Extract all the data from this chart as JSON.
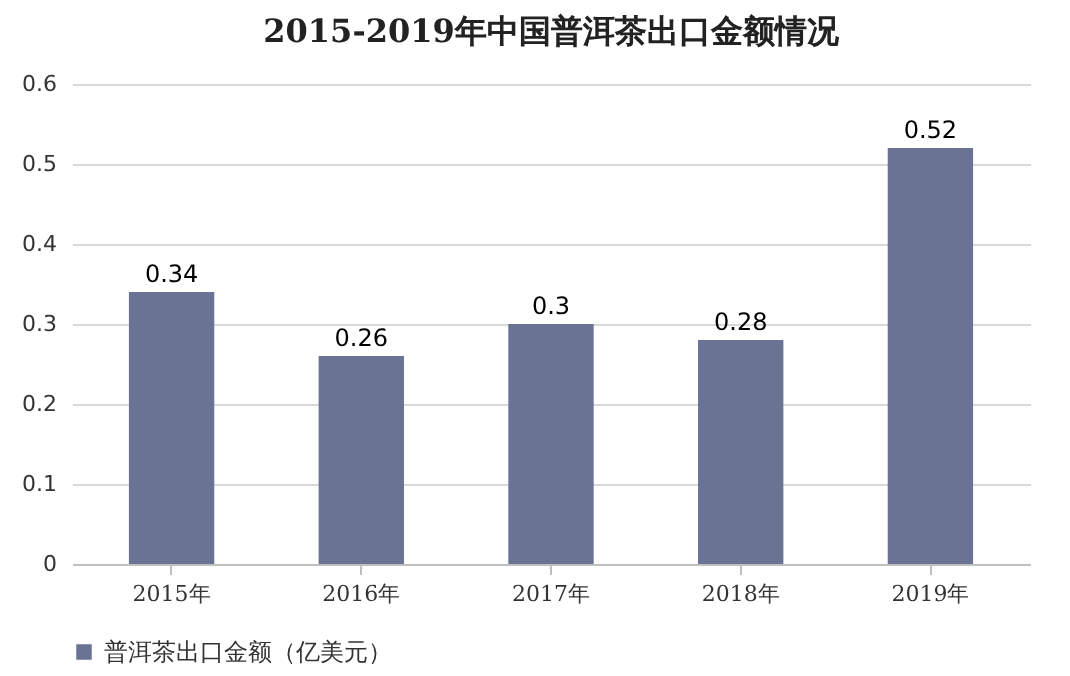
{
  "chart_data": {
    "type": "bar",
    "title": "2015-2019年中国普洱茶出口金额情况",
    "categories": [
      "2015年",
      "2016年",
      "2017年",
      "2018年",
      "2019年"
    ],
    "series": [
      {
        "name": "普洱茶出口金额（亿美元）",
        "color": "#6b7394",
        "values": [
          0.34,
          0.26,
          0.3,
          0.28,
          0.52
        ]
      }
    ],
    "ylim": [
      0,
      0.6
    ],
    "yticks": [
      0,
      0.1,
      0.2,
      0.3,
      0.4,
      0.5,
      0.6
    ],
    "grid": "y",
    "legend": "bottom",
    "data_labels": true
  }
}
